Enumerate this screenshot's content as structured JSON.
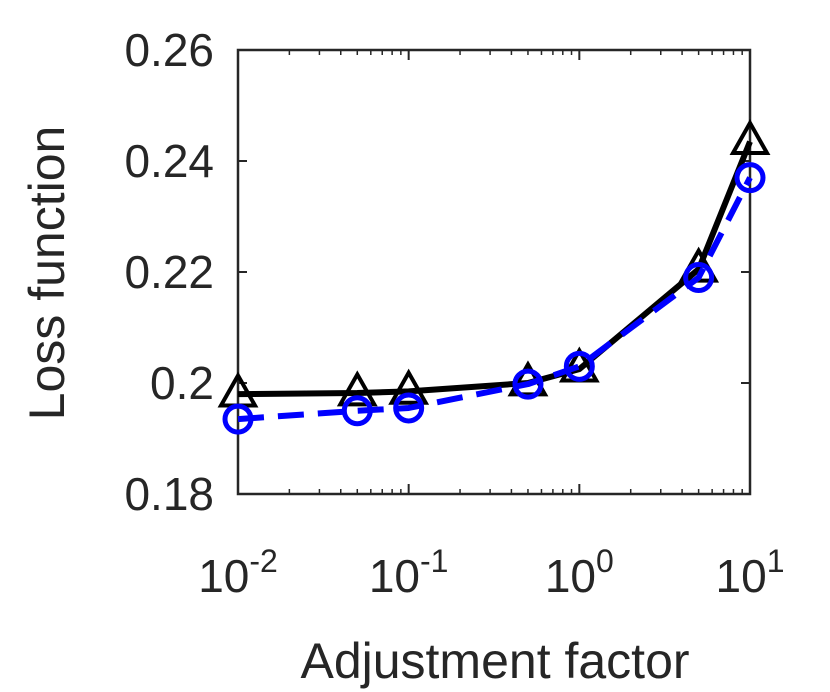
{
  "chart_data": {
    "type": "line",
    "title": "",
    "xlabel": "Adjustment factor",
    "ylabel": "Loss function",
    "xscale": "log",
    "xlim": [
      0.01,
      10
    ],
    "ylim": [
      0.18,
      0.26
    ],
    "grid": false,
    "box": true,
    "legend": "none",
    "x_ticks": [
      {
        "base": "10",
        "exp": "-2"
      },
      {
        "base": "10",
        "exp": "-1"
      },
      {
        "base": "10",
        "exp": "0"
      },
      {
        "base": "10",
        "exp": "1"
      }
    ],
    "y_ticks": [
      "0.18",
      "0.2",
      "0.22",
      "0.24",
      "0.26"
    ],
    "x": [
      0.01,
      0.05,
      0.1,
      0.5,
      1,
      5,
      10
    ],
    "series": [
      {
        "color": "#000000",
        "marker": "triangle",
        "line": "solid",
        "values": [
          0.198,
          0.1982,
          0.1985,
          0.2,
          0.2025,
          0.2205,
          0.2435
        ]
      },
      {
        "color": "#0000ff",
        "marker": "circle",
        "line": "dashed",
        "values": [
          0.1935,
          0.195,
          0.1955,
          0.1998,
          0.203,
          0.219,
          0.237
        ]
      }
    ]
  }
}
